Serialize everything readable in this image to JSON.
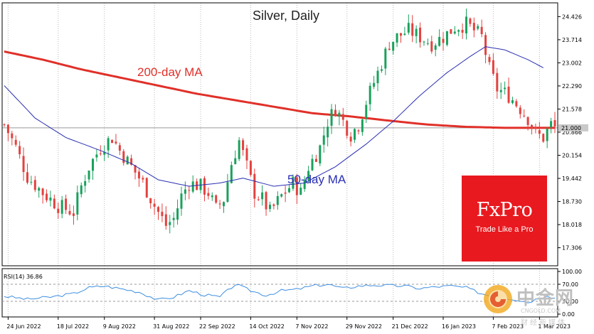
{
  "chart_data": {
    "type": "candlestick",
    "title": "Silver, Daily",
    "annotations": {
      "ma200_label": "200-day MA",
      "ma50_label": "50-day MA"
    },
    "y_ticks": [
      "24.426",
      "23.714",
      "23.002",
      "22.290",
      "21.578",
      "20.866",
      "20.154",
      "19.442",
      "18.730",
      "18.018",
      "17.306"
    ],
    "ylim": [
      16.75,
      24.85
    ],
    "current_price_label": "21.000",
    "current_price": 21.0,
    "x_tick_labels": [
      "24 Jun 2022",
      "18 Jul 2022",
      "9 Aug 2022",
      "31 Aug 2022",
      "22 Sep 2022",
      "14 Oct 2022",
      "7 Nov 2022",
      "29 Nov 2022",
      "21 Dec 2022",
      "16 Jan 2023",
      "7 Feb 2023",
      "1 Mar 2023"
    ],
    "price_path": [
      [
        0,
        21.1
      ],
      [
        3,
        20.4
      ],
      [
        6,
        19.5
      ],
      [
        10,
        19.0
      ],
      [
        14,
        18.6
      ],
      [
        18,
        18.4
      ],
      [
        20,
        19.2
      ],
      [
        22,
        19.8
      ],
      [
        25,
        20.4
      ],
      [
        28,
        20.7
      ],
      [
        30,
        20.3
      ],
      [
        33,
        19.8
      ],
      [
        36,
        19.3
      ],
      [
        39,
        18.6
      ],
      [
        42,
        18.0
      ],
      [
        44,
        18.2
      ],
      [
        46,
        18.9
      ],
      [
        48,
        19.3
      ],
      [
        51,
        19.2
      ],
      [
        53,
        19.0
      ],
      [
        55,
        18.5
      ],
      [
        57,
        18.8
      ],
      [
        59,
        19.9
      ],
      [
        61,
        20.6
      ],
      [
        63,
        19.8
      ],
      [
        65,
        19.0
      ],
      [
        67,
        18.8
      ],
      [
        69,
        18.4
      ],
      [
        72,
        18.9
      ],
      [
        75,
        19.3
      ],
      [
        77,
        19.0
      ],
      [
        79,
        19.8
      ],
      [
        82,
        20.4
      ],
      [
        84,
        21.2
      ],
      [
        86,
        21.6
      ],
      [
        88,
        21.2
      ],
      [
        90,
        20.8
      ],
      [
        92,
        21.1
      ],
      [
        94,
        21.8
      ],
      [
        96,
        22.4
      ],
      [
        98,
        23.0
      ],
      [
        100,
        23.6
      ],
      [
        102,
        23.8
      ],
      [
        105,
        24.0
      ],
      [
        108,
        23.8
      ],
      [
        111,
        23.6
      ],
      [
        114,
        23.8
      ],
      [
        117,
        24.1
      ],
      [
        120,
        24.2
      ],
      [
        122,
        24.0
      ],
      [
        124,
        23.8
      ],
      [
        126,
        22.8
      ],
      [
        128,
        22.2
      ],
      [
        131,
        22.0
      ],
      [
        134,
        21.6
      ],
      [
        136,
        21.3
      ],
      [
        138,
        20.8
      ],
      [
        140,
        20.7
      ],
      [
        142,
        21.1
      ],
      [
        143,
        21.0
      ]
    ],
    "ma50": {
      "name": "50-day MA",
      "points": [
        [
          0,
          22.3
        ],
        [
          8,
          21.3
        ],
        [
          16,
          20.7
        ],
        [
          25,
          20.3
        ],
        [
          33,
          19.9
        ],
        [
          40,
          19.4
        ],
        [
          48,
          19.2
        ],
        [
          56,
          19.3
        ],
        [
          62,
          19.45
        ],
        [
          70,
          19.2
        ],
        [
          78,
          19.3
        ],
        [
          86,
          19.8
        ],
        [
          94,
          20.5
        ],
        [
          101,
          21.2
        ],
        [
          108,
          22.0
        ],
        [
          115,
          22.7
        ],
        [
          121,
          23.2
        ],
        [
          125,
          23.5
        ],
        [
          130,
          23.4
        ],
        [
          136,
          23.1
        ],
        [
          140,
          22.85
        ]
      ]
    },
    "ma200": {
      "name": "200-day MA",
      "points": [
        [
          0,
          23.35
        ],
        [
          10,
          23.1
        ],
        [
          20,
          22.8
        ],
        [
          30,
          22.55
        ],
        [
          40,
          22.3
        ],
        [
          50,
          22.05
        ],
        [
          60,
          21.85
        ],
        [
          70,
          21.65
        ],
        [
          80,
          21.45
        ],
        [
          90,
          21.35
        ],
        [
          100,
          21.22
        ],
        [
          110,
          21.1
        ],
        [
          120,
          21.03
        ],
        [
          130,
          21.0
        ],
        [
          143,
          21.0
        ]
      ]
    },
    "rsi": {
      "label": "RSI(14) 36.86",
      "value": 36.86,
      "levels": [
        30,
        70
      ],
      "y_ticks": [
        "100.00",
        "70.00",
        "30.00",
        "0.00"
      ],
      "path": [
        [
          0,
          42
        ],
        [
          6,
          35
        ],
        [
          12,
          40
        ],
        [
          18,
          48
        ],
        [
          22,
          62
        ],
        [
          26,
          66
        ],
        [
          30,
          60
        ],
        [
          35,
          52
        ],
        [
          40,
          33
        ],
        [
          44,
          40
        ],
        [
          48,
          55
        ],
        [
          52,
          45
        ],
        [
          56,
          40
        ],
        [
          60,
          70
        ],
        [
          64,
          55
        ],
        [
          68,
          44
        ],
        [
          72,
          55
        ],
        [
          76,
          58
        ],
        [
          80,
          66
        ],
        [
          84,
          70
        ],
        [
          88,
          60
        ],
        [
          92,
          66
        ],
        [
          96,
          68
        ],
        [
          100,
          67
        ],
        [
          104,
          66
        ],
        [
          108,
          60
        ],
        [
          112,
          64
        ],
        [
          116,
          66
        ],
        [
          120,
          62
        ],
        [
          124,
          48
        ],
        [
          128,
          40
        ],
        [
          132,
          36
        ],
        [
          136,
          28
        ],
        [
          139,
          38
        ],
        [
          141,
          45
        ],
        [
          143,
          37
        ]
      ]
    }
  },
  "branding": {
    "logo_text": "FxPro",
    "logo_tagline": "Trade Like a Pro",
    "watermark_text": "中金网",
    "watermark_domain": "CNGOLD.COM",
    "watermark_tagline": "财经新媒体"
  },
  "colors": {
    "bull": "#1aa15d",
    "bear": "#e2423f",
    "ma200": "#e03029",
    "ma50": "#2a2fb3",
    "rsi": "#3d8ee0",
    "brand": "#e8191f"
  }
}
